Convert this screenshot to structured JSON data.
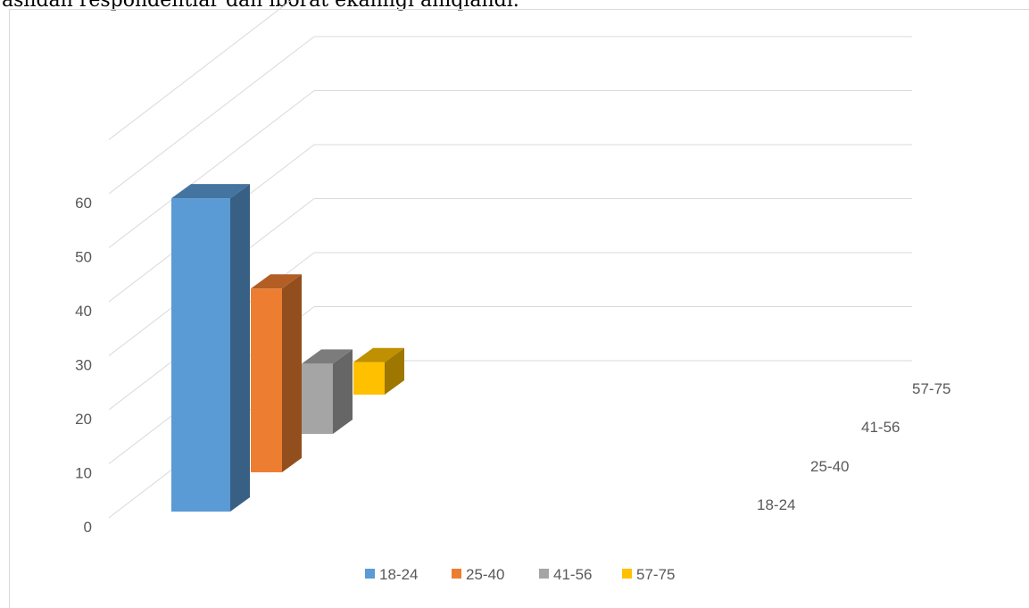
{
  "caption": "aslıdan respondentlar dan iborat ekanligi aniqlandi.",
  "chart_data": {
    "type": "bar",
    "projection": "3d",
    "categories": [
      "18-24",
      "25-40",
      "41-56",
      "57-75"
    ],
    "series": [
      {
        "name": "18-24",
        "values": [
          58,
          null,
          null,
          null
        ],
        "color": "#5B9BD5"
      },
      {
        "name": "25-40",
        "values": [
          null,
          34,
          null,
          null
        ],
        "color": "#ED7D31"
      },
      {
        "name": "41-56",
        "values": [
          null,
          null,
          13,
          null
        ],
        "color": "#A5A5A5"
      },
      {
        "name": "57-75",
        "values": [
          null,
          null,
          null,
          6
        ],
        "color": "#FFC000"
      }
    ],
    "y_ticks": [
      "0",
      "10",
      "20",
      "30",
      "40",
      "50",
      "60"
    ],
    "depth_labels": [
      "18-24",
      "25-40",
      "41-56",
      "57-75"
    ],
    "ylim": [
      0,
      70
    ],
    "grid": true,
    "legend_position": "bottom",
    "legend": [
      "18-24",
      "25-40",
      "41-56",
      "57-75"
    ]
  }
}
